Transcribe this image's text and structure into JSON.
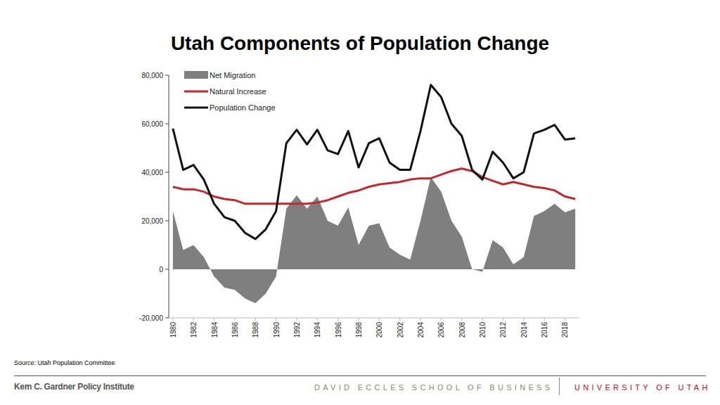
{
  "chart_data": {
    "type": "line",
    "title": "Utah Components of Population Change",
    "source": "Source: Utah Population Committee",
    "x": [
      1980,
      1981,
      1982,
      1983,
      1984,
      1985,
      1986,
      1987,
      1988,
      1989,
      1990,
      1991,
      1992,
      1993,
      1994,
      1995,
      1996,
      1997,
      1998,
      1999,
      2000,
      2001,
      2002,
      2003,
      2004,
      2005,
      2006,
      2007,
      2008,
      2009,
      2010,
      2011,
      2012,
      2013,
      2014,
      2015,
      2016,
      2017,
      2018,
      2019
    ],
    "xlim": [
      1979.6,
      2019.4
    ],
    "xticks": [
      1980,
      1982,
      1984,
      1986,
      1988,
      1990,
      1992,
      1994,
      1996,
      1998,
      2000,
      2002,
      2004,
      2006,
      2008,
      2010,
      2012,
      2014,
      2016,
      2018
    ],
    "ylim": [
      -20000,
      80000
    ],
    "yticks": [
      {
        "value": -20000,
        "label": "-20,000"
      },
      0,
      {
        "value": 20000,
        "label": "20,000"
      },
      {
        "value": 40000,
        "label": "40,000"
      },
      {
        "value": 60000,
        "label": "60,000"
      },
      {
        "value": 80000,
        "label": "80,000"
      }
    ],
    "legend": "upper left",
    "series": [
      {
        "name": "Net Migration",
        "type": "area",
        "color": "#7f7f7f",
        "values": [
          24000,
          8000,
          10000,
          5000,
          -3000,
          -7500,
          -8500,
          -12000,
          -14000,
          -10000,
          -3000,
          25000,
          30500,
          25000,
          30000,
          20000,
          18000,
          25500,
          10000,
          18000,
          19000,
          9000,
          6000,
          4000,
          20000,
          38000,
          32000,
          20000,
          13500,
          0,
          -1000,
          12000,
          9000,
          2000,
          5000,
          22000,
          24000,
          27000,
          23500,
          25000
        ]
      },
      {
        "name": "Natural Increase",
        "type": "line",
        "color": "#c0282d",
        "values": [
          34000,
          33000,
          33000,
          32000,
          30000,
          29000,
          28500,
          27000,
          27000,
          27000,
          27000,
          27000,
          27000,
          27000,
          27500,
          28500,
          30000,
          31500,
          32500,
          34000,
          35000,
          35500,
          36000,
          37000,
          37500,
          37500,
          39000,
          40500,
          41500,
          40500,
          38000,
          36500,
          35000,
          36000,
          35000,
          34000,
          33500,
          32500,
          30000,
          29000
        ]
      },
      {
        "name": "Population Change",
        "type": "line",
        "color": "#111111",
        "values": [
          58000,
          41000,
          43000,
          37000,
          27000,
          21500,
          20000,
          15000,
          12500,
          16500,
          24000,
          52000,
          57500,
          51500,
          57500,
          49000,
          47500,
          57000,
          42000,
          52000,
          54000,
          44000,
          41000,
          41000,
          57000,
          76000,
          71000,
          60000,
          55000,
          41000,
          37000,
          48500,
          44000,
          37500,
          40000,
          56000,
          57500,
          59500,
          53500,
          54000
        ]
      }
    ]
  },
  "footer": {
    "left": "Kem C. Gardner Policy Institute",
    "center": "DAVID ECCLES SCHOOL OF BUSINESS",
    "right": "UNIVERSITY OF UTAH"
  }
}
